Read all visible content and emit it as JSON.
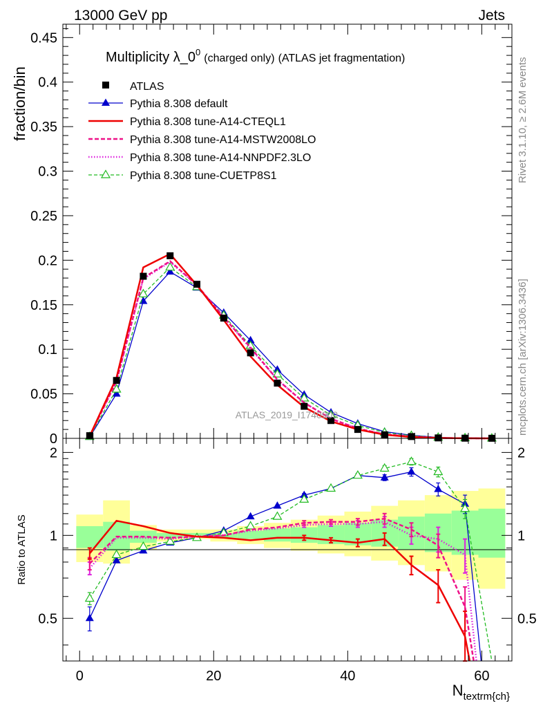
{
  "header": {
    "energy": "13000 GeV pp",
    "process": "Jets",
    "side_top": "Rivet 3.1.10, ≥ 2.6M events",
    "side_bottom": "mcplots.cern.ch [arXiv:1306.3436]",
    "watermark": "ATLAS_2019_I1740909"
  },
  "chart_data": [
    {
      "type": "line",
      "panel": "main",
      "title_main": "Multiplicity λ_0",
      "title_sup": "0",
      "title_small": "(charged only)",
      "title_tail": "(ATLAS jet fragmentation)",
      "xlabel": "",
      "ylabel": "fraction/bin",
      "xlim": [
        -2.5,
        64.5
      ],
      "ylim": [
        0,
        0.465
      ],
      "yticks": [
        0,
        0.05,
        0.1,
        0.15,
        0.2,
        0.25,
        0.3,
        0.35,
        0.4,
        0.45
      ],
      "ytick_labels": [
        "0",
        "0.05",
        "0.1",
        "0.15",
        "0.2",
        "0.25",
        "0.3",
        "0.35",
        "0.4",
        "0.45"
      ],
      "legend_position": "top-left",
      "x": [
        1.5,
        5.5,
        9.5,
        13.5,
        17.5,
        21.5,
        25.5,
        29.5,
        33.5,
        37.5,
        41.5,
        45.5,
        49.5,
        53.5,
        57.5,
        61.5
      ],
      "series": [
        {
          "name": "ATLAS",
          "color": "#000000",
          "style": "data",
          "values": [
            0.003,
            0.065,
            0.182,
            0.205,
            0.173,
            0.135,
            0.096,
            0.062,
            0.036,
            0.02,
            0.01,
            0.004,
            0.002,
            0.0005,
            0.0002,
            0.0001
          ]
        },
        {
          "name": "Pythia 8.308 default",
          "color": "#0000cc",
          "style": "solid-triangle",
          "values": [
            0.0015,
            0.05,
            0.154,
            0.187,
            0.169,
            0.141,
            0.11,
            0.077,
            0.049,
            0.029,
            0.0165,
            0.0075,
            0.0035,
            0.001,
            0.0005,
            0.0001
          ]
        },
        {
          "name": "Pythia 8.308 tune-A14-CTEQL1",
          "color": "#ee0000",
          "style": "solid",
          "values": [
            0.0025,
            0.068,
            0.192,
            0.207,
            0.172,
            0.133,
            0.092,
            0.06,
            0.035,
            0.019,
            0.01,
            0.004,
            0.0015,
            0.0004,
            0.0001,
            0.0
          ]
        },
        {
          "name": "Pythia 8.308 tune-A14-MSTW2008LO",
          "color": "#ee1188",
          "style": "dashed",
          "values": [
            0.0025,
            0.064,
            0.18,
            0.199,
            0.172,
            0.136,
            0.102,
            0.066,
            0.04,
            0.022,
            0.011,
            0.0045,
            0.002,
            0.0005,
            0.0001,
            0.0
          ]
        },
        {
          "name": "Pythia 8.308 tune-A14-NNPDF2.3LO",
          "color": "#dd22dd",
          "style": "dotted",
          "values": [
            0.0024,
            0.064,
            0.179,
            0.198,
            0.172,
            0.136,
            0.101,
            0.066,
            0.04,
            0.022,
            0.011,
            0.0045,
            0.002,
            0.0005,
            0.0001,
            0.0
          ]
        },
        {
          "name": "Pythia 8.308 tune-CUETP8S1",
          "color": "#22bb22",
          "style": "dashed-open-triangle",
          "values": [
            0.0018,
            0.055,
            0.162,
            0.192,
            0.17,
            0.138,
            0.104,
            0.072,
            0.045,
            0.026,
            0.0145,
            0.0065,
            0.003,
            0.001,
            0.0004,
            0.0001
          ]
        }
      ]
    },
    {
      "type": "line",
      "panel": "ratio",
      "xlabel": "N_textrm{ch}",
      "xlabel_main": "N",
      "xlabel_sub": "textrm{ch}",
      "ylabel": "Ratio to ATLAS",
      "xlim": [
        -2.5,
        64.5
      ],
      "ylim": [
        0.35,
        2.25
      ],
      "xticks": [
        0,
        20,
        40,
        60
      ],
      "xtick_labels": [
        "0",
        "20",
        "40",
        "60"
      ],
      "yticks": [
        0.5,
        1,
        2
      ],
      "ytick_labels": [
        "0.5",
        "1",
        "2"
      ],
      "bins": [
        [
          -0.5,
          3.5
        ],
        [
          3.5,
          7.5
        ],
        [
          7.5,
          11.5
        ],
        [
          11.5,
          15.5
        ],
        [
          15.5,
          19.5
        ],
        [
          19.5,
          23.5
        ],
        [
          23.5,
          27.5
        ],
        [
          27.5,
          31.5
        ],
        [
          31.5,
          35.5
        ],
        [
          35.5,
          39.5
        ],
        [
          39.5,
          43.5
        ],
        [
          43.5,
          47.5
        ],
        [
          47.5,
          51.5
        ],
        [
          51.5,
          55.5
        ],
        [
          55.5,
          59.5
        ],
        [
          59.5,
          63.5
        ]
      ],
      "band_yellow": [
        [
          0.8,
          1.19
        ],
        [
          0.79,
          1.34
        ],
        [
          0.89,
          1.09
        ],
        [
          0.95,
          1.05
        ],
        [
          0.97,
          1.05
        ],
        [
          0.95,
          1.05
        ],
        [
          0.93,
          1.08
        ],
        [
          0.9,
          1.11
        ],
        [
          0.88,
          1.14
        ],
        [
          0.86,
          1.18
        ],
        [
          0.84,
          1.22
        ],
        [
          0.81,
          1.28
        ],
        [
          0.78,
          1.34
        ],
        [
          0.74,
          1.4
        ],
        [
          0.69,
          1.45
        ],
        [
          0.64,
          1.48
        ]
      ],
      "band_green": [
        [
          0.9,
          1.08
        ],
        [
          0.88,
          1.12
        ],
        [
          0.94,
          1.04
        ],
        [
          0.98,
          1.02
        ],
        [
          0.99,
          1.02
        ],
        [
          0.98,
          1.02
        ],
        [
          0.97,
          1.04
        ],
        [
          0.95,
          1.06
        ],
        [
          0.94,
          1.07
        ],
        [
          0.93,
          1.09
        ],
        [
          0.92,
          1.11
        ],
        [
          0.91,
          1.14
        ],
        [
          0.89,
          1.17
        ],
        [
          0.87,
          1.2
        ],
        [
          0.85,
          1.23
        ],
        [
          0.83,
          1.25
        ]
      ],
      "series": [
        {
          "name": "Pythia 8.308 default",
          "color": "#0000cc",
          "style": "solid-triangle",
          "x": [
            1.5,
            5.5,
            9.5,
            13.5,
            17.5,
            21.5,
            25.5,
            29.5,
            33.5,
            37.5,
            41.5,
            45.5,
            49.5,
            53.5,
            57.5,
            59.9
          ],
          "values": [
            0.5,
            0.81,
            0.88,
            0.94,
            0.98,
            1.04,
            1.17,
            1.28,
            1.4,
            1.48,
            1.65,
            1.62,
            1.7,
            1.47,
            1.3,
            0.35
          ],
          "err": [
            0.05,
            0.01,
            0.01,
            0.01,
            0.01,
            0.01,
            0.01,
            0.01,
            0.02,
            0.02,
            0.03,
            0.04,
            0.06,
            0.08,
            0.1,
            0.0
          ]
        },
        {
          "name": "Pythia 8.308 tune-A14-CTEQL1",
          "color": "#ee0000",
          "style": "solid",
          "x": [
            1.5,
            5.5,
            9.5,
            13.5,
            17.5,
            21.5,
            25.5,
            29.5,
            33.5,
            37.5,
            41.5,
            45.5,
            49.5,
            53.5,
            57.5,
            58.2
          ],
          "values": [
            0.86,
            1.13,
            1.08,
            1.02,
            0.99,
            0.98,
            0.96,
            0.98,
            0.98,
            0.96,
            0.94,
            0.97,
            0.78,
            0.66,
            0.43,
            0.35
          ],
          "err": [
            0.04,
            0.01,
            0.01,
            0.01,
            0.01,
            0.01,
            0.01,
            0.01,
            0.02,
            0.02,
            0.03,
            0.05,
            0.06,
            0.09,
            0.1,
            0.0
          ]
        },
        {
          "name": "Pythia 8.308 tune-A14-MSTW2008LO",
          "color": "#ee1188",
          "style": "dashed",
          "x": [
            1.5,
            5.5,
            9.5,
            13.5,
            17.5,
            21.5,
            25.5,
            29.5,
            33.5,
            37.5,
            41.5,
            45.5,
            49.5,
            53.5,
            57.5,
            58.8
          ],
          "values": [
            0.79,
            0.99,
            0.99,
            0.98,
            0.99,
            1.0,
            1.05,
            1.07,
            1.11,
            1.12,
            1.12,
            1.15,
            1.05,
            0.92,
            0.55,
            0.35
          ],
          "err": [
            0.04,
            0.01,
            0.01,
            0.01,
            0.01,
            0.01,
            0.01,
            0.01,
            0.02,
            0.02,
            0.03,
            0.05,
            0.06,
            0.09,
            0.1,
            0.0
          ]
        },
        {
          "name": "Pythia 8.308 tune-A14-NNPDF2.3LO",
          "color": "#dd22dd",
          "style": "dotted",
          "x": [
            1.5,
            5.5,
            9.5,
            13.5,
            17.5,
            21.5,
            25.5,
            29.5,
            33.5,
            37.5,
            41.5,
            45.5,
            49.5,
            53.5,
            57.5,
            59.2
          ],
          "values": [
            0.76,
            0.98,
            0.98,
            0.97,
            0.99,
            1.0,
            1.04,
            1.06,
            1.09,
            1.1,
            1.1,
            1.12,
            1.0,
            0.97,
            0.85,
            0.35
          ],
          "err": [
            0.04,
            0.01,
            0.01,
            0.01,
            0.01,
            0.01,
            0.01,
            0.01,
            0.02,
            0.02,
            0.03,
            0.05,
            0.07,
            0.1,
            0.12,
            0.0
          ]
        },
        {
          "name": "Pythia 8.308 tune-CUETP8S1",
          "color": "#22bb22",
          "style": "dashed-open-triangle",
          "x": [
            1.5,
            5.5,
            9.5,
            13.5,
            17.5,
            21.5,
            25.5,
            29.5,
            33.5,
            37.5,
            41.5,
            45.5,
            49.5,
            53.5,
            57.5,
            61.5
          ],
          "values": [
            0.59,
            0.85,
            0.91,
            0.95,
            0.98,
            1.02,
            1.08,
            1.17,
            1.35,
            1.48,
            1.65,
            1.75,
            1.85,
            1.7,
            1.25,
            0.35
          ],
          "err": [
            0.03,
            0.01,
            0.01,
            0.01,
            0.01,
            0.01,
            0.01,
            0.01,
            0.02,
            0.02,
            0.03,
            0.04,
            0.05,
            0.07,
            0.1,
            0.0
          ]
        }
      ]
    }
  ]
}
